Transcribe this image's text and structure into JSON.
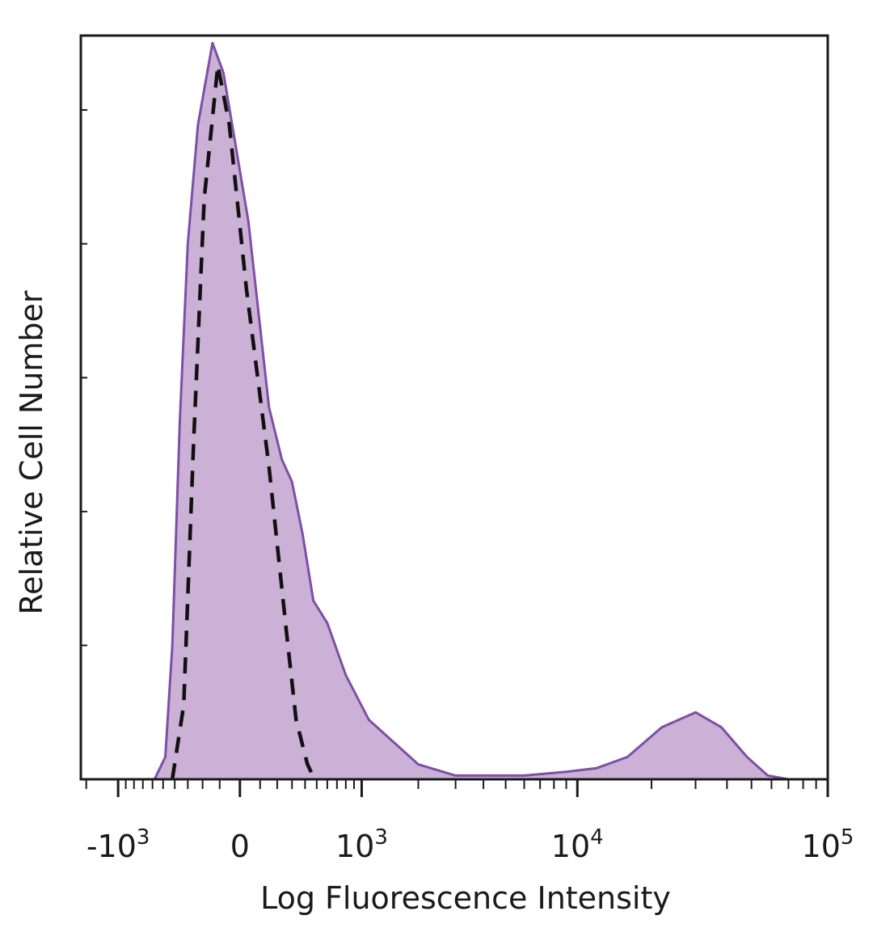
{
  "chart_data": {
    "type": "area",
    "xlabel": "Log Fluorescence Intensity",
    "ylabel": "Relative Cell Number",
    "x_scale": "biexponential",
    "xlim": [
      -1600,
      100000
    ],
    "ylim": [
      0,
      100
    ],
    "x_ticks": [
      {
        "value": -1000,
        "base": "-10",
        "exp": "3"
      },
      {
        "value": 0,
        "base": "0",
        "exp": ""
      },
      {
        "value": 1000,
        "base": "10",
        "exp": "3"
      },
      {
        "value": 10000,
        "base": "10",
        "exp": "4"
      },
      {
        "value": 100000,
        "base": "10",
        "exp": "5"
      }
    ],
    "grid": false,
    "legend": "none",
    "series": [
      {
        "style": "filled",
        "color": "#7d4fa6",
        "fill": "#cbb1d6",
        "points": [
          [
            -580,
            0
          ],
          [
            -480,
            3
          ],
          [
            -420,
            18
          ],
          [
            -360,
            48
          ],
          [
            -300,
            72
          ],
          [
            -230,
            88
          ],
          [
            -140,
            99
          ],
          [
            -80,
            95
          ],
          [
            40,
            75
          ],
          [
            150,
            50
          ],
          [
            230,
            43
          ],
          [
            300,
            40
          ],
          [
            380,
            33
          ],
          [
            470,
            24
          ],
          [
            600,
            21
          ],
          [
            800,
            14
          ],
          [
            1100,
            8
          ],
          [
            1500,
            5
          ],
          [
            2000,
            2
          ],
          [
            3000,
            0.5
          ],
          [
            6000,
            0.5
          ],
          [
            9000,
            1
          ],
          [
            12000,
            1.5
          ],
          [
            16000,
            3
          ],
          [
            22000,
            7
          ],
          [
            30000,
            9
          ],
          [
            38000,
            7
          ],
          [
            48000,
            3
          ],
          [
            58000,
            0.5
          ],
          [
            70000,
            0
          ]
        ]
      },
      {
        "style": "dashed",
        "color": "#111111",
        "points": [
          [
            -420,
            0
          ],
          [
            -330,
            10
          ],
          [
            -260,
            45
          ],
          [
            -190,
            78
          ],
          [
            -110,
            96
          ],
          [
            -50,
            88
          ],
          [
            30,
            66
          ],
          [
            150,
            42
          ],
          [
            260,
            20
          ],
          [
            330,
            8
          ],
          [
            420,
            2
          ],
          [
            480,
            0
          ]
        ]
      }
    ]
  }
}
